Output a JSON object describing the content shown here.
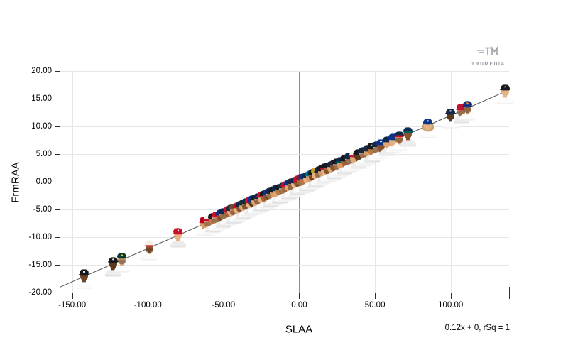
{
  "branding": {
    "logo_text": "TRUMEDIA",
    "logo_color": "#9aa0a6"
  },
  "chart_data": {
    "type": "scatter",
    "title": "",
    "xlabel": "SLAA",
    "ylabel": "FrmRAA",
    "xlim": [
      -157.8,
      138.6
    ],
    "ylim": [
      -20.07,
      20.03
    ],
    "grid": true,
    "legend": "none",
    "axis_color": "#2f2f2f",
    "grid_color": "#e6e6e6",
    "zero_line_color": "#8c8c8c",
    "trend_line_color": "#555555",
    "x_ticks": [
      {
        "value": -150,
        "label": "-150.00"
      },
      {
        "value": -100,
        "label": "-100.00"
      },
      {
        "value": -50,
        "label": "-50.00"
      },
      {
        "value": 0,
        "label": "0.00"
      },
      {
        "value": 50,
        "label": "50.00"
      },
      {
        "value": 100,
        "label": "100.00"
      }
    ],
    "y_ticks": [
      {
        "value": 20,
        "label": "20.00"
      },
      {
        "value": 15,
        "label": "15.00"
      },
      {
        "value": 10,
        "label": "10.00"
      },
      {
        "value": 5,
        "label": "5.00"
      },
      {
        "value": 0,
        "label": "0.00"
      },
      {
        "value": -5,
        "label": "-5.00"
      },
      {
        "value": -10,
        "label": "-10.00"
      },
      {
        "value": -15,
        "label": "-15.00"
      },
      {
        "value": -20,
        "label": "-20.00"
      }
    ],
    "trend": {
      "slope": 0.12,
      "intercept": 0,
      "equation_label": "0.12x + 0, rSq = 1"
    },
    "marker": "player-headshot",
    "points": [
      {
        "x": -142,
        "y": -17.04,
        "cap": "#17191c",
        "skin": "#6f4423",
        "logo": "#e8e8e8"
      },
      {
        "x": -123,
        "y": -14.76,
        "cap": "#17191c",
        "skin": "#5d3a1e",
        "logo": "#e8e8e8"
      },
      {
        "x": -117,
        "y": -14.04,
        "cap": "#0c3a2d",
        "skin": "#e5b186",
        "beard": true,
        "logo": "#f2c94c"
      },
      {
        "x": -99,
        "y": -11.88,
        "cap": "#f5f0e6",
        "brim": "#c8102e",
        "skin": "#a6633a",
        "beard": true
      },
      {
        "x": -80,
        "y": -9.6,
        "cap": "#c8102e",
        "skin": "#e5b186",
        "logo": "#ffffff"
      },
      {
        "x": -63,
        "y": -7.56,
        "cap": "#ba0021",
        "skin": "#d99a66"
      },
      {
        "x": -60,
        "y": -7.2,
        "cap": "#f5f0e6",
        "brim": "#c8102e",
        "skin": "#e5b186",
        "beard": true
      },
      {
        "x": -57,
        "y": -6.84,
        "cap": "#17191c",
        "skin": "#b97a46"
      },
      {
        "x": -55,
        "y": -6.6,
        "cap": "#c8102e",
        "skin": "#e5b186",
        "beard": true
      },
      {
        "x": -52,
        "y": -6.24,
        "cap": "#0e3386",
        "skin": "#8a512a"
      },
      {
        "x": -50,
        "y": -6.0,
        "cap": "#12284b",
        "skin": "#e0a876",
        "beard": true
      },
      {
        "x": -47,
        "y": -5.64,
        "cap": "#c8102e",
        "skin": "#a6633a"
      },
      {
        "x": -45,
        "y": -5.4,
        "cap": "#1f2a44",
        "skin": "#e5b186"
      },
      {
        "x": -43,
        "y": -5.16,
        "cap": "#6b4f2a",
        "skin": "#d99a66",
        "beard": true
      },
      {
        "x": -41,
        "y": -4.92,
        "cap": "#c8102e",
        "skin": "#e5b186"
      },
      {
        "x": -39,
        "y": -4.68,
        "cap": "#12284b",
        "skin": "#8a512a"
      },
      {
        "x": -37,
        "y": -4.44,
        "cap": "#0c3a2d",
        "skin": "#e0a876",
        "logo": "#f2c94c"
      },
      {
        "x": -35,
        "y": -4.2,
        "cap": "#12284b",
        "skin": "#b97a46",
        "beard": true
      },
      {
        "x": -33,
        "y": -3.96,
        "cap": "#c8102e",
        "skin": "#e5b186"
      },
      {
        "x": -31,
        "y": -3.72,
        "cap": "#0e3386",
        "skin": "#5d3a1e"
      },
      {
        "x": -29,
        "y": -3.48,
        "cap": "#17191c",
        "skin": "#e0a876",
        "logo": "#f47b20"
      },
      {
        "x": -27,
        "y": -3.24,
        "cap": "#12284b",
        "skin": "#d99a66",
        "beard": true
      },
      {
        "x": -25,
        "y": -3.0,
        "cap": "#c8102e",
        "skin": "#e5b186"
      },
      {
        "x": -23,
        "y": -2.76,
        "cap": "#17191c",
        "skin": "#a6633a",
        "logo": "#fdb827"
      },
      {
        "x": -21,
        "y": -2.52,
        "cap": "#0e3386",
        "skin": "#8a512a",
        "logo": "#ffffff"
      },
      {
        "x": -19,
        "y": -2.28,
        "cap": "#12284b",
        "skin": "#e5b186",
        "beard": true
      },
      {
        "x": -17,
        "y": -2.04,
        "cap": "#17191c",
        "skin": "#d99a66"
      },
      {
        "x": -15,
        "y": -1.8,
        "cap": "#12284b",
        "skin": "#e0a876",
        "logo": "#c8102e"
      },
      {
        "x": -13,
        "y": -1.56,
        "cap": "#17191c",
        "skin": "#b97a46",
        "logo": "#fdb827"
      },
      {
        "x": -11,
        "y": -1.32,
        "cap": "#12284b",
        "skin": "#e5b186",
        "beard": true
      },
      {
        "x": -9,
        "y": -1.08,
        "cap": "#c8102e",
        "skin": "#a6633a"
      },
      {
        "x": -7,
        "y": -0.84,
        "cap": "#0e3386",
        "skin": "#e0a876"
      },
      {
        "x": -5,
        "y": -0.6,
        "cap": "#26273a",
        "skin": "#d99a66",
        "beard": true
      },
      {
        "x": -3,
        "y": -0.36,
        "cap": "#12284b",
        "skin": "#e5b186"
      },
      {
        "x": -1,
        "y": -0.12,
        "cap": "#c8102e",
        "skin": "#8a512a"
      },
      {
        "x": 1,
        "y": 0.12,
        "cap": "#6f263d",
        "skin": "#e0a876",
        "beard": true
      },
      {
        "x": 3,
        "y": 0.36,
        "cap": "#0e3386",
        "skin": "#b97a46"
      },
      {
        "x": 5,
        "y": 0.6,
        "cap": "#12284b",
        "skin": "#e5b186",
        "logo": "#f47b20"
      },
      {
        "x": 7,
        "y": 0.84,
        "cap": "#00788c",
        "skin": "#d99a66"
      },
      {
        "x": 9,
        "y": 1.08,
        "cap": "#17191c",
        "skin": "#a6633a",
        "beard": true
      },
      {
        "x": 11,
        "y": 1.32,
        "cap": "#c9a227",
        "skin": "#e5b186"
      },
      {
        "x": 13,
        "y": 1.56,
        "cap": "#12284b",
        "skin": "#e0a876",
        "beard": true
      },
      {
        "x": 15,
        "y": 1.8,
        "cap": "#17191c",
        "skin": "#d99a66"
      },
      {
        "x": 17,
        "y": 2.04,
        "cap": "#17191c",
        "brim": "#c8102e",
        "skin": "#e5b186"
      },
      {
        "x": 19,
        "y": 2.28,
        "cap": "#17191c",
        "skin": "#b97a46",
        "beard": true,
        "logo": "#fdb827"
      },
      {
        "x": 21,
        "y": 2.52,
        "cap": "#12284b",
        "skin": "#e0a876"
      },
      {
        "x": 23,
        "y": 2.76,
        "cap": "#26273a",
        "skin": "#8a512a"
      },
      {
        "x": 25,
        "y": 3.0,
        "cap": "#17191c",
        "skin": "#e5b186",
        "beard": true
      },
      {
        "x": 27,
        "y": 3.24,
        "cap": "#0c2c56",
        "brim": "#005c5c",
        "skin": "#d99a66"
      },
      {
        "x": 30,
        "y": 3.6,
        "cap": "#17191c",
        "skin": "#a6633a"
      },
      {
        "x": 33,
        "y": 3.96,
        "cap": "#12284b",
        "skin": "#e5b186",
        "beard": true
      },
      {
        "x": 36,
        "y": 4.32,
        "cap": "#f5f0e6",
        "brim": "#c8102e",
        "skin": "#e0a876"
      },
      {
        "x": 39,
        "y": 4.68,
        "cap": "#17191c",
        "skin": "#5d3a1e"
      },
      {
        "x": 42,
        "y": 5.04,
        "cap": "#12284b",
        "skin": "#e5b186",
        "beard": true
      },
      {
        "x": 45,
        "y": 5.4,
        "cap": "#1f2a44",
        "skin": "#d99a66"
      },
      {
        "x": 48,
        "y": 5.76,
        "cap": "#17191c",
        "skin": "#b97a46",
        "logo": "#fdb827"
      },
      {
        "x": 51,
        "y": 6.12,
        "cap": "#12284b",
        "skin": "#e5b186",
        "beard": true
      },
      {
        "x": 54,
        "y": 6.48,
        "cap": "#0e3386",
        "skin": "#8a512a",
        "logo": "#ffffff"
      },
      {
        "x": 58,
        "y": 6.96,
        "cap": "#12284b",
        "skin": "#e0a876"
      },
      {
        "x": 62,
        "y": 7.44,
        "cap": "#0e3386",
        "skin": "#e5b186"
      },
      {
        "x": 66,
        "y": 7.92,
        "cap": "#12284b",
        "brim": "#c8102e",
        "skin": "#d99a66",
        "beard": true
      },
      {
        "x": 72,
        "y": 8.64,
        "cap": "#0c2c56",
        "brim": "#005c5c",
        "skin": "#8a512a"
      },
      {
        "x": 85,
        "y": 10.2,
        "cap": "#0e3386",
        "skin": "#e5b186",
        "hair": "#c9a36a",
        "logo": "#ffffff"
      },
      {
        "x": 100,
        "y": 12.0,
        "cap": "#12284b",
        "skin": "#5d3a1e",
        "logo": "#ffffff"
      },
      {
        "x": 107,
        "y": 12.84,
        "cap": "#c8102e",
        "skin": "#e0a876",
        "beard": true
      },
      {
        "x": 111,
        "y": 13.32,
        "cap": "#0e3386",
        "skin": "#d99a66",
        "beard": true,
        "logo": "#f47b20"
      },
      {
        "x": 136,
        "y": 16.32,
        "cap": "#17191c",
        "skin": "#e5b186",
        "logo": "#f47b20"
      }
    ]
  }
}
